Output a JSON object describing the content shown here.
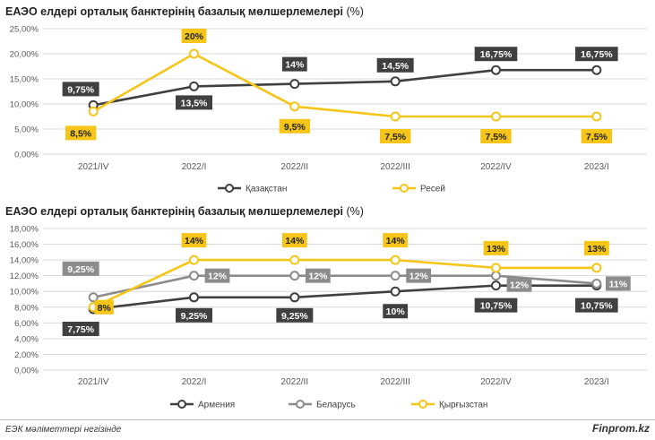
{
  "chart_data": [
    {
      "type": "line",
      "title": "ЕАЭО елдері орталық банктерінің базалық мөлшерлемелері",
      "title_suffix": "(%)",
      "categories": [
        "2021/IV",
        "2022/I",
        "2022/II",
        "2022/III",
        "2022/IV",
        "2023/I"
      ],
      "ylim": [
        0,
        25
      ],
      "yticks": [
        "0,00%",
        "5,00%",
        "10,00%",
        "15,00%",
        "20,00%",
        "25,00%"
      ],
      "grid": true,
      "legend_position": "bottom",
      "series": [
        {
          "name": "Қазақстан",
          "color": "#404040",
          "values": [
            9.75,
            13.5,
            14,
            14.5,
            16.75,
            16.75
          ],
          "labels": [
            "9,75%",
            "13,5%",
            "14%",
            "14,5%",
            "16,75%",
            "16,75%"
          ]
        },
        {
          "name": "Ресей",
          "color": "#f5c518",
          "values": [
            8.5,
            20,
            9.5,
            7.5,
            7.5,
            7.5
          ],
          "labels": [
            "8,5%",
            "20%",
            "9,5%",
            "7,5%",
            "7,5%",
            "7,5%"
          ]
        }
      ]
    },
    {
      "type": "line",
      "title": "ЕАЭО елдері орталық банктерінің базалық мөлшерлемелері",
      "title_suffix": "(%)",
      "categories": [
        "2021/IV",
        "2022/I",
        "2022/II",
        "2022/III",
        "2022/IV",
        "2023/I"
      ],
      "ylim": [
        0,
        18
      ],
      "yticks": [
        "0,00%",
        "2,00%",
        "4,00%",
        "6,00%",
        "8,00%",
        "10,00%",
        "12,00%",
        "14,00%",
        "16,00%",
        "18,00%"
      ],
      "grid": true,
      "legend_position": "bottom",
      "series": [
        {
          "name": "Армения",
          "color": "#404040",
          "values": [
            7.75,
            9.25,
            9.25,
            10,
            10.75,
            10.75
          ],
          "labels": [
            "7,75%",
            "9,25%",
            "9,25%",
            "10%",
            "10,75%",
            "10,75%"
          ]
        },
        {
          "name": "Беларусь",
          "color": "#8c8c8c",
          "values": [
            9.25,
            12,
            12,
            12,
            12,
            11
          ],
          "labels": [
            "9,25%",
            "12%",
            "12%",
            "12%",
            "12%",
            "11%"
          ]
        },
        {
          "name": "Қырғызстан",
          "color": "#f5c518",
          "values": [
            8,
            14,
            14,
            14,
            13,
            13
          ],
          "labels": [
            "8%",
            "14%",
            "14%",
            "14%",
            "13%",
            "13%"
          ]
        }
      ]
    }
  ],
  "footer": {
    "source": "ЕЭК мәліметтері негізінде",
    "brand": "Finprom.kz"
  }
}
